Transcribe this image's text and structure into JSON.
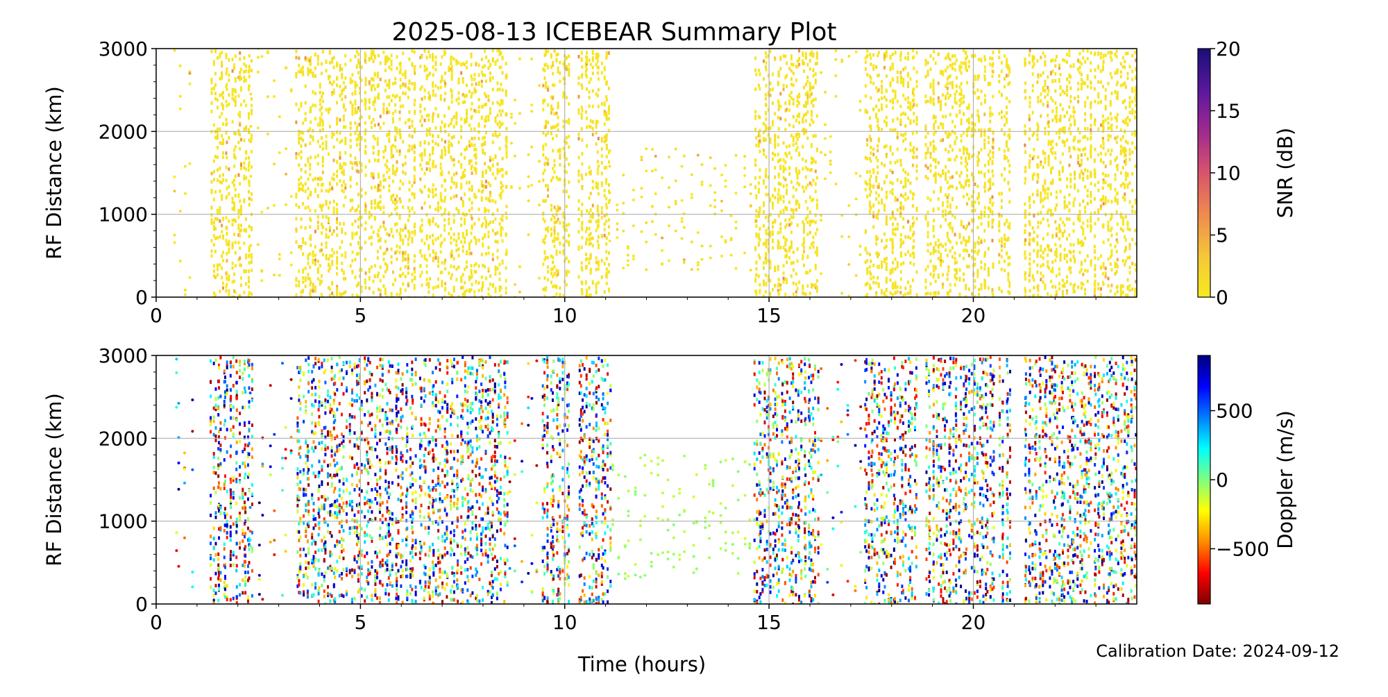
{
  "title": "2025-08-13 ICEBEAR Summary Plot",
  "footer": "Calibration Date: 2024-09-12",
  "colors": {
    "grid": "#b0b0b0",
    "axis": "#000000",
    "snr_colormap": [
      "#f7ea1f",
      "#f4c63a",
      "#ef8a4f",
      "#d8546c",
      "#a02a8f",
      "#5a179e",
      "#1a0e78"
    ],
    "doppler_colormap": [
      "#7f0000",
      "#ff0000",
      "#ff8c00",
      "#ffff00",
      "#7fff7f",
      "#00ffff",
      "#007fff",
      "#0000ff",
      "#00007f"
    ]
  },
  "chart_data": [
    {
      "type": "scatter",
      "name": "snr-panel",
      "xlabel": "Time (hours)",
      "ylabel": "RF Distance (km)",
      "xlim": [
        0,
        24
      ],
      "ylim": [
        0,
        3000
      ],
      "xticks": [
        0,
        5,
        10,
        15,
        20
      ],
      "yticks": [
        0,
        1000,
        2000,
        3000
      ],
      "grid": true,
      "colorbar": {
        "label": "SNR (dB)",
        "range": [
          0,
          20
        ],
        "ticks": [
          0,
          5,
          10,
          15,
          20
        ],
        "colormap": "plasma_r"
      },
      "dense_intervals_hours": [
        [
          1.3,
          2.3
        ],
        [
          3.4,
          4.6
        ],
        [
          4.7,
          6.3
        ],
        [
          6.4,
          8.6
        ],
        [
          9.4,
          10.1
        ],
        [
          10.3,
          11.1
        ],
        [
          14.6,
          16.2
        ],
        [
          17.3,
          18.6
        ],
        [
          18.8,
          20.5
        ],
        [
          20.6,
          20.9
        ],
        [
          21.2,
          24.0
        ]
      ],
      "sparse_intervals_hours": [
        [
          0.4,
          0.9
        ],
        [
          2.3,
          3.4
        ],
        [
          8.6,
          9.4
        ],
        [
          11.1,
          14.6
        ],
        [
          16.2,
          17.3
        ]
      ],
      "typical_snr_db": [
        0,
        3
      ]
    },
    {
      "type": "scatter",
      "name": "doppler-panel",
      "xlabel": "Time (hours)",
      "ylabel": "RF Distance (km)",
      "xlim": [
        0,
        24
      ],
      "ylim": [
        0,
        3000
      ],
      "xticks": [
        0,
        5,
        10,
        15,
        20
      ],
      "yticks": [
        0,
        1000,
        2000,
        3000
      ],
      "grid": true,
      "colorbar": {
        "label": "Doppler (m/s)",
        "range": [
          -900,
          900
        ],
        "ticks": [
          -500,
          0,
          500
        ],
        "tick_labels": [
          "−500",
          "0",
          "500"
        ],
        "colormap": "jet_r"
      },
      "dense_intervals_hours": [
        [
          1.3,
          2.3
        ],
        [
          3.4,
          4.6
        ],
        [
          4.7,
          6.3
        ],
        [
          6.4,
          8.6
        ],
        [
          9.4,
          10.1
        ],
        [
          10.3,
          11.1
        ],
        [
          14.6,
          16.2
        ],
        [
          17.3,
          18.6
        ],
        [
          18.8,
          20.5
        ],
        [
          20.6,
          20.9
        ],
        [
          21.2,
          24.0
        ]
      ],
      "sparse_intervals_hours": [
        [
          0.4,
          0.9
        ],
        [
          2.3,
          3.4
        ],
        [
          8.6,
          9.4
        ],
        [
          11.1,
          14.6
        ],
        [
          16.2,
          17.3
        ]
      ]
    }
  ]
}
